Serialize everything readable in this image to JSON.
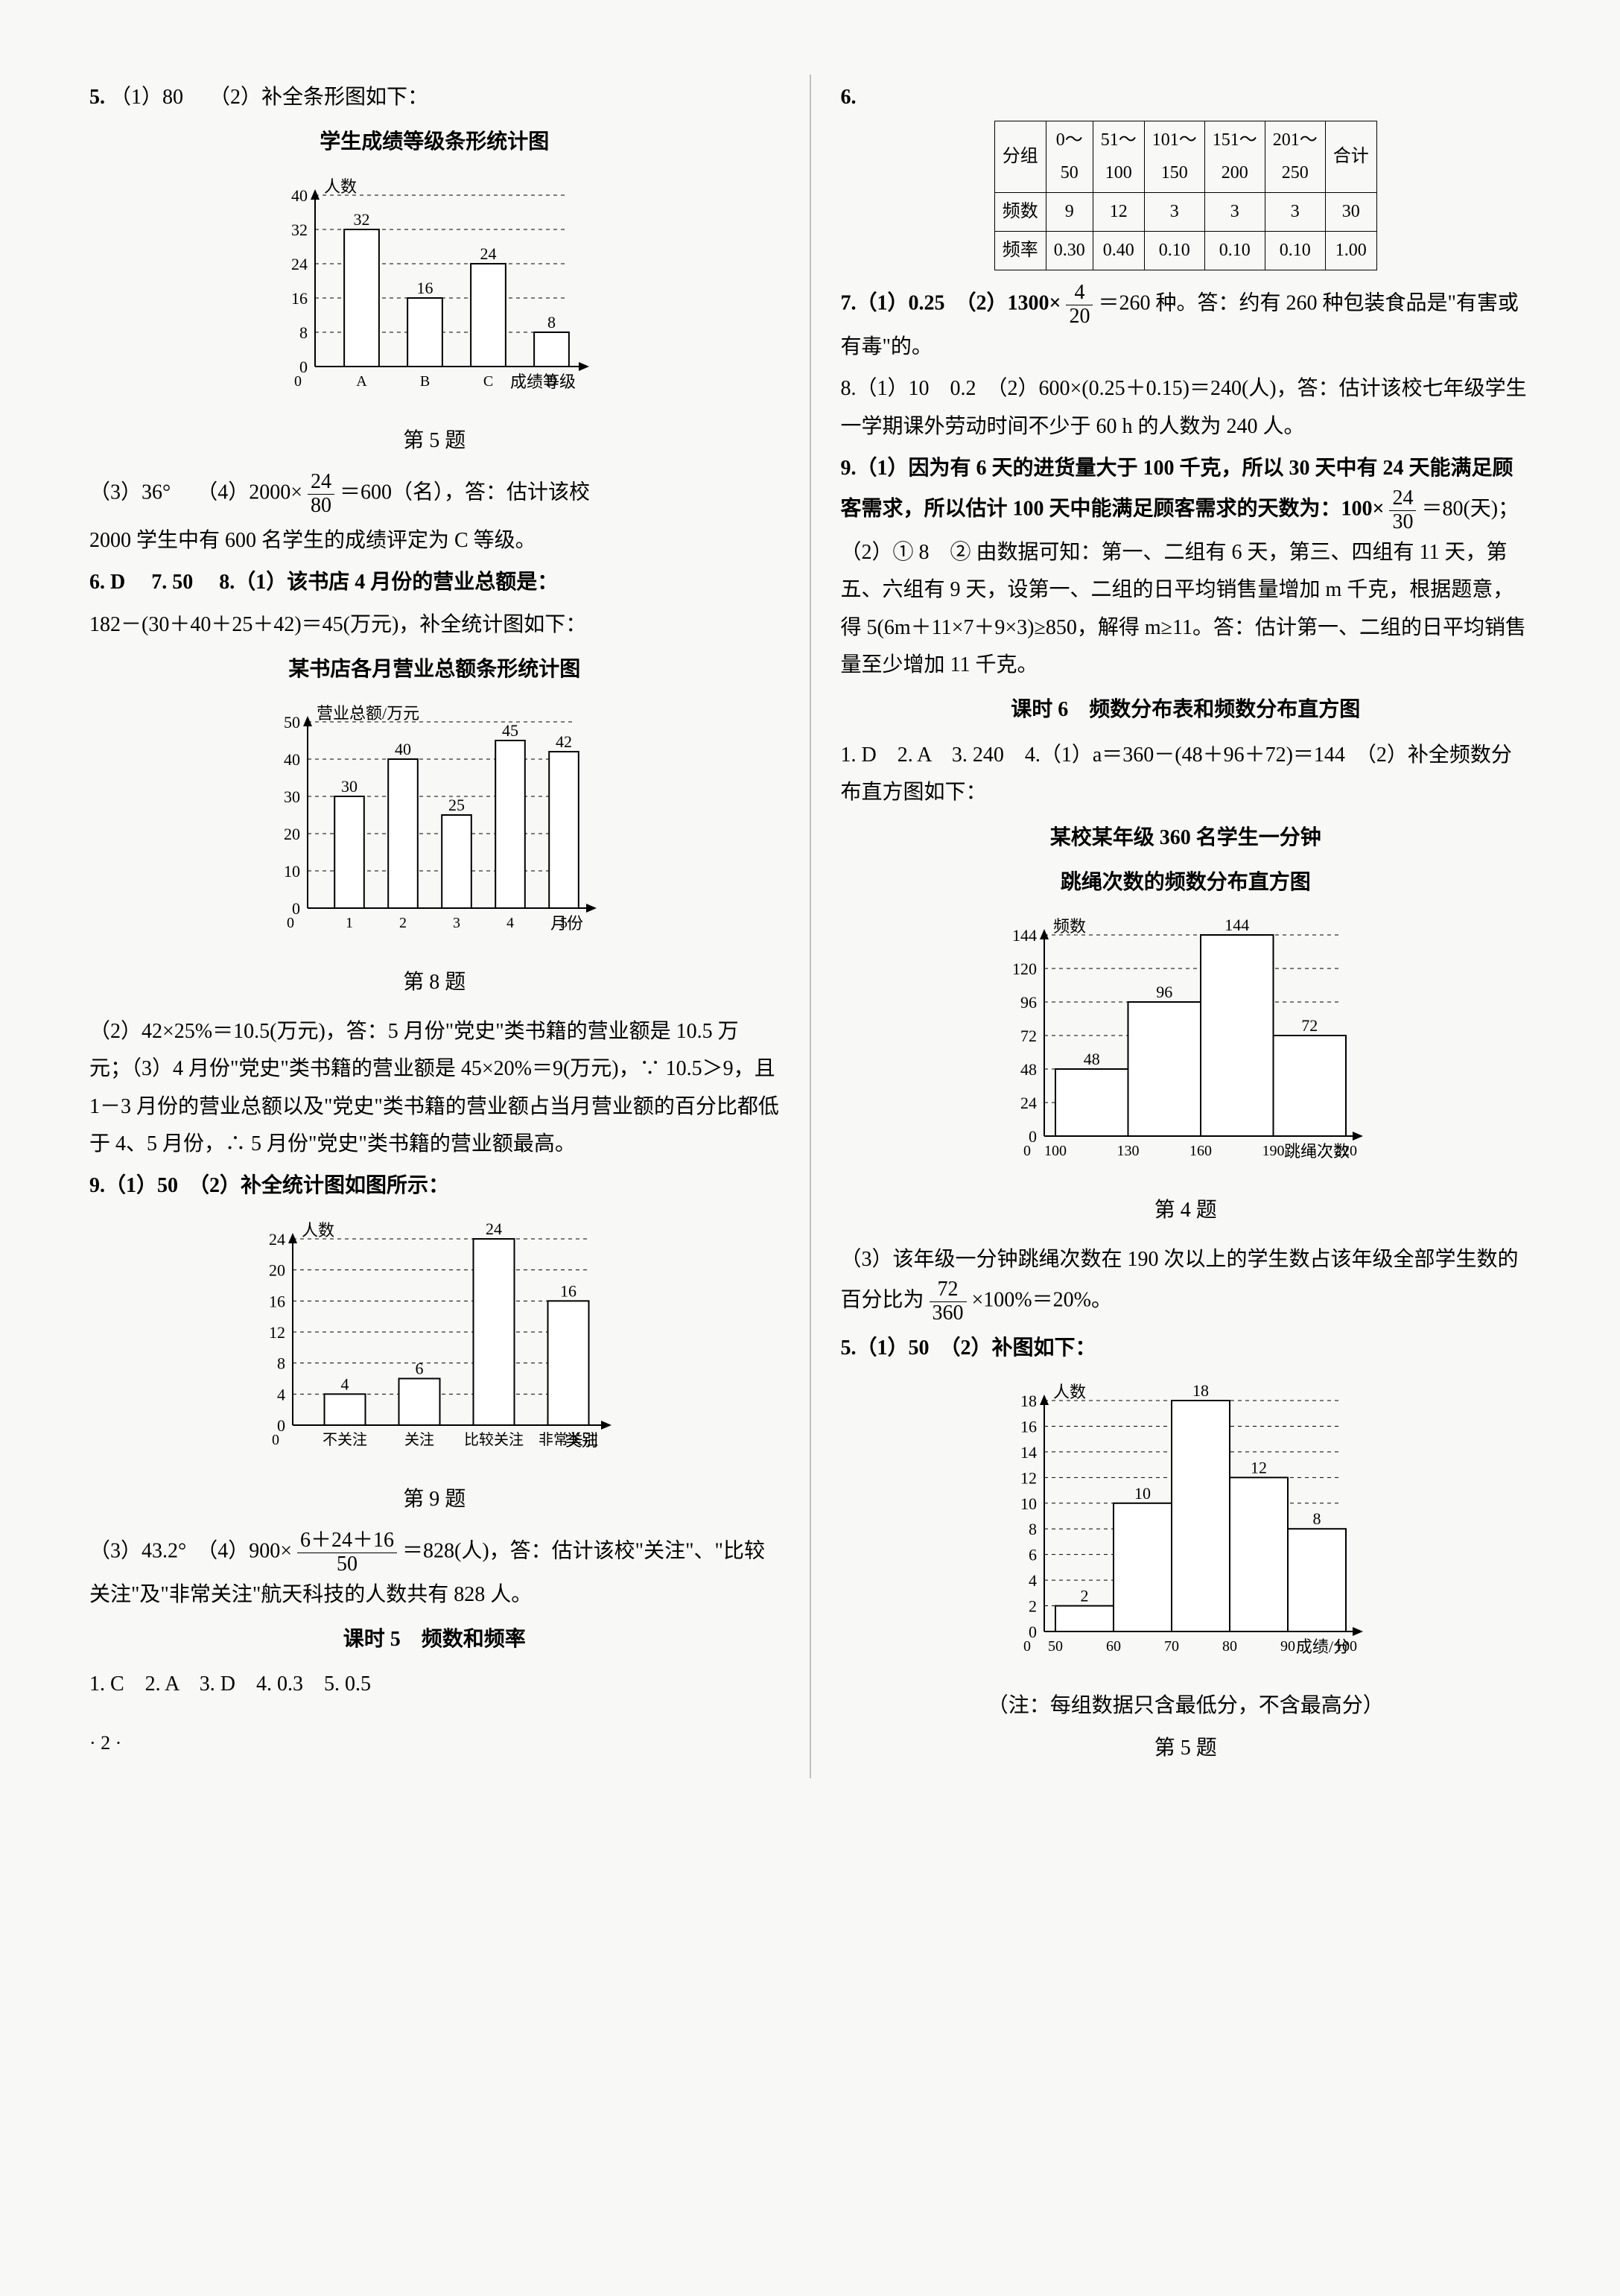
{
  "left": {
    "q5_prefix": "5.",
    "q5_1": "（1）80",
    "q5_2": "（2）补全条形图如下：",
    "chart5_title": "学生成绩等级条形统计图",
    "chart5_ylabel": "人数",
    "chart5_xlabel": "成绩等级",
    "chart5_caption": "第 5 题",
    "chart5": {
      "categories": [
        "A",
        "B",
        "C",
        "D"
      ],
      "values": [
        32,
        16,
        24,
        8
      ],
      "ylim": [
        0,
        40
      ],
      "ytick": 8,
      "bar_fill": "#ffffff",
      "bar_stroke": "#000000",
      "grid_color": "#000000",
      "bg": "#f8f8f6"
    },
    "q5_3": "（3）36°",
    "q5_4a": "（4）2000×",
    "q5_4_num": "24",
    "q5_4_den": "80",
    "q5_4b": "＝600（名），答：估计该校",
    "q5_4c": "2000 学生中有 600 名学生的成绩评定为 C 等级。",
    "q6": "6. D",
    "q7": "7. 50",
    "q8a": "8.（1）该书店 4 月份的营业总额是：",
    "q8b": "182－(30＋40＋25＋42)＝45(万元)，补全统计图如下：",
    "chart8_title": "某书店各月营业总额条形统计图",
    "chart8_ylabel": "营业总额/万元",
    "chart8_xlabel": "月份",
    "chart8_caption": "第 8 题",
    "chart8": {
      "categories": [
        "1",
        "2",
        "3",
        "4",
        "5"
      ],
      "values": [
        30,
        40,
        25,
        45,
        42
      ],
      "ylim": [
        0,
        50
      ],
      "ytick": 10,
      "bar_fill": "#ffffff",
      "bar_stroke": "#000000",
      "bg": "#f8f8f6"
    },
    "q8c": "（2）42×25%＝10.5(万元)，答：5 月份\"党史\"类书籍的营业额是 10.5 万元；（3）4 月份\"党史\"类书籍的营业额是 45×20%＝9(万元)，∵ 10.5＞9，且 1－3 月份的营业总额以及\"党史\"类书籍的营业额占当月营业额的百分比都低于 4、5 月份，∴ 5 月份\"党史\"类书籍的营业额最高。",
    "q9a": "9.（1）50　（2）补全统计图如图所示：",
    "chart9_ylabel": "人数",
    "chart9_xlabel": "类别",
    "chart9_caption": "第 9 题",
    "chart9": {
      "categories": [
        "不关注",
        "关注",
        "比较关注",
        "非常关注"
      ],
      "values": [
        4,
        6,
        24,
        16
      ],
      "ylim": [
        0,
        24
      ],
      "ytick": 4,
      "bar_fill": "#ffffff",
      "bar_stroke": "#000000",
      "bg": "#f8f8f6"
    },
    "q9b": "（3）43.2°　（4）900×",
    "q9_num": "6＋24＋16",
    "q9_den": "50",
    "q9c": "＝828(人)，答：估计该校\"关注\"、\"比较关注\"及\"非常关注\"航天科技的人数共有 828 人。",
    "kt5_title": "课时 5　频数和频率",
    "kt5_ans": "1. C　2. A　3. D　4. 0.3　5. 0.5",
    "page": "· 2 ·"
  },
  "right": {
    "q6_label": "6.",
    "table": {
      "head_row1": [
        "分组",
        "0～50",
        "51～100",
        "101～150",
        "151～200",
        "201～250",
        "合计"
      ],
      "row1": [
        "频数",
        "9",
        "12",
        "3",
        "3",
        "3",
        "30"
      ],
      "row2": [
        "频率",
        "0.30",
        "0.40",
        "0.10",
        "0.10",
        "0.10",
        "1.00"
      ]
    },
    "q7a": "7.（1）0.25　（2）1300×",
    "q7_num": "4",
    "q7_den": "20",
    "q7b": "＝260 种。答：约有 260 种包装食品是\"有害或有毒\"的。",
    "q8": "8.（1）10　0.2　（2）600×(0.25＋0.15)＝240(人)，答：估计该校七年级学生一学期课外劳动时间不少于 60 h 的人数为 240 人。",
    "q9a": "9.（1）因为有 6 天的进货量大于 100 千克，所以 30 天中有 24 天能满足顾客需求，所以估计 100 天中能满足顾客需求的天数为：100×",
    "q9_num": "24",
    "q9_den": "30",
    "q9b": "＝80(天)；　（2）① 8　② 由数据可知：第一、二组有 6 天，第三、四组有 11 天，第五、六组有 9 天，设第一、二组的日平均销售量增加 m 千克，根据题意，得 5(6m＋11×7＋9×3)≥850，解得 m≥11。答：估计第一、二组的日平均销售量至少增加 11 千克。",
    "kt6_title": "课时 6　频数分布表和频数分布直方图",
    "kt6_a": "1. D　2. A　3. 240　4.（1）a＝360－(48＋96＋72)＝144　（2）补全频数分布直方图如下：",
    "chart4_title1": "某校某年级 360 名学生一分钟",
    "chart4_title2": "跳绳次数的频数分布直方图",
    "chart4_ylabel": "频数",
    "chart4_xlabel": "跳绳次数",
    "chart4_caption": "第 4 题",
    "chart4": {
      "edges": [
        100,
        130,
        160,
        190,
        220
      ],
      "values": [
        48,
        96,
        144,
        72
      ],
      "ylim": [
        0,
        144
      ],
      "ytick": 24,
      "bar_fill": "#ffffff",
      "bar_stroke": "#000000",
      "bg": "#f8f8f6"
    },
    "q4c": "（3）该年级一分钟跳绳次数在 190 次以上的学生数占该年级全部学生数的百分比为",
    "q4_num": "72",
    "q4_den": "360",
    "q4d": "×100%＝20%。",
    "q5a": "5.（1）50　（2）补图如下：",
    "chart5b_ylabel": "人数",
    "chart5b_xlabel": "成绩/分",
    "chart5b_note": "（注：每组数据只含最低分，不含最高分）",
    "chart5b_caption": "第 5 题",
    "chart5b": {
      "edges": [
        50,
        60,
        70,
        80,
        90,
        100
      ],
      "values": [
        2,
        10,
        18,
        12,
        8
      ],
      "ylim": [
        0,
        18
      ],
      "ytick": 2,
      "bar_fill": "#ffffff",
      "bar_stroke": "#000000",
      "bg": "#f8f8f6"
    }
  }
}
